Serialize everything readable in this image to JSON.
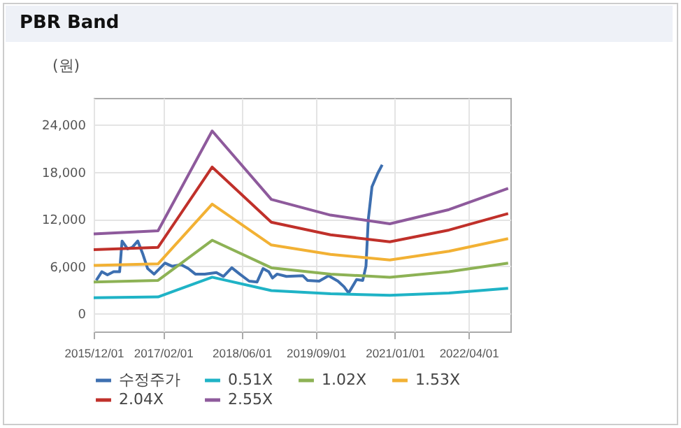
{
  "chart_data": {
    "type": "line",
    "title": "PBR Band",
    "ylabel": "(원)",
    "x": [
      "2015-12-01",
      "2017-01-01",
      "2017-12-01",
      "2018-12-01",
      "2019-12-01",
      "2020-12-01",
      "2021-12-01",
      "2022-12-01"
    ],
    "series": [
      {
        "name": "수정주가",
        "color": "#3d6fb0",
        "x": [
          "2015-12-17",
          "2016-01-20",
          "2016-02-24",
          "2016-04-02",
          "2016-05-09",
          "2016-05-24",
          "2016-06-27",
          "2016-07-26",
          "2016-08-29",
          "2016-09-30",
          "2016-10-29",
          "2016-12-08",
          "2017-02-13",
          "2017-03-28",
          "2017-05-24",
          "2017-07-07",
          "2017-08-19",
          "2017-10-16",
          "2017-12-27",
          "2018-02-08",
          "2018-04-01",
          "2018-05-20",
          "2018-07-17",
          "2018-09-04",
          "2018-10-11",
          "2018-11-15",
          "2018-12-08",
          "2019-01-06",
          "2019-03-04",
          "2019-06-13",
          "2019-07-12",
          "2019-09-22",
          "2019-11-19",
          "2020-01-16",
          "2020-02-22",
          "2020-03-22",
          "2020-05-10",
          "2020-06-17",
          "2020-07-07",
          "2020-07-21",
          "2020-08-13",
          "2020-09-17",
          "2020-10-15"
        ],
        "values": [
          4200,
          5300,
          4900,
          5300,
          5300,
          9200,
          8200,
          8400,
          9200,
          7500,
          5700,
          5000,
          6400,
          6000,
          6200,
          5700,
          5000,
          5000,
          5200,
          4700,
          5800,
          5000,
          4100,
          4000,
          5700,
          5300,
          4500,
          5000,
          4700,
          4800,
          4200,
          4100,
          4800,
          4100,
          3400,
          2600,
          4300,
          4200,
          6000,
          11900,
          16100,
          17800,
          18900
        ]
      },
      {
        "name": "0.51X",
        "color": "#1fb3c6",
        "values": [
          2000,
          2100,
          4600,
          2900,
          2500,
          2300,
          2600,
          3200
        ]
      },
      {
        "name": "1.02X",
        "color": "#8db255",
        "values": [
          4000,
          4200,
          9300,
          5800,
          5000,
          4600,
          5300,
          6400
        ]
      },
      {
        "name": "1.53X",
        "color": "#f2b134",
        "values": [
          6100,
          6300,
          13900,
          8700,
          7500,
          6800,
          7900,
          9500
        ]
      },
      {
        "name": "2.04X",
        "color": "#c0302a",
        "values": [
          8100,
          8400,
          18600,
          11600,
          10000,
          9100,
          10600,
          12700
        ]
      },
      {
        "name": "2.55X",
        "color": "#8e5a9c",
        "values": [
          10100,
          10500,
          23200,
          14500,
          12500,
          11400,
          13200,
          15900
        ]
      }
    ],
    "xlim": [
      "2015-12-01",
      "2022-12-15"
    ],
    "xticks": [
      {
        "value": "2015-12-01",
        "label": "2015/12/01"
      },
      {
        "value": "2017-02-01",
        "label": "2017/02/01"
      },
      {
        "value": "2018-06-01",
        "label": "2018/06/01"
      },
      {
        "value": "2019-09-01",
        "label": "2019/09/01"
      },
      {
        "value": "2021-01-01",
        "label": "2021/01/01"
      },
      {
        "value": "2022-04-01",
        "label": "2022/04/01"
      }
    ],
    "ylim": [
      -2300,
      27400
    ],
    "yticks": [
      {
        "value": 0,
        "label": "0"
      },
      {
        "value": 6000,
        "label": "6,000"
      },
      {
        "value": 12000,
        "label": "12,000"
      },
      {
        "value": 18000,
        "label": "18,000"
      },
      {
        "value": 24000,
        "label": "24,000"
      }
    ],
    "grid": true,
    "legend": "bottom",
    "line_style": "solid",
    "marker": "none"
  }
}
